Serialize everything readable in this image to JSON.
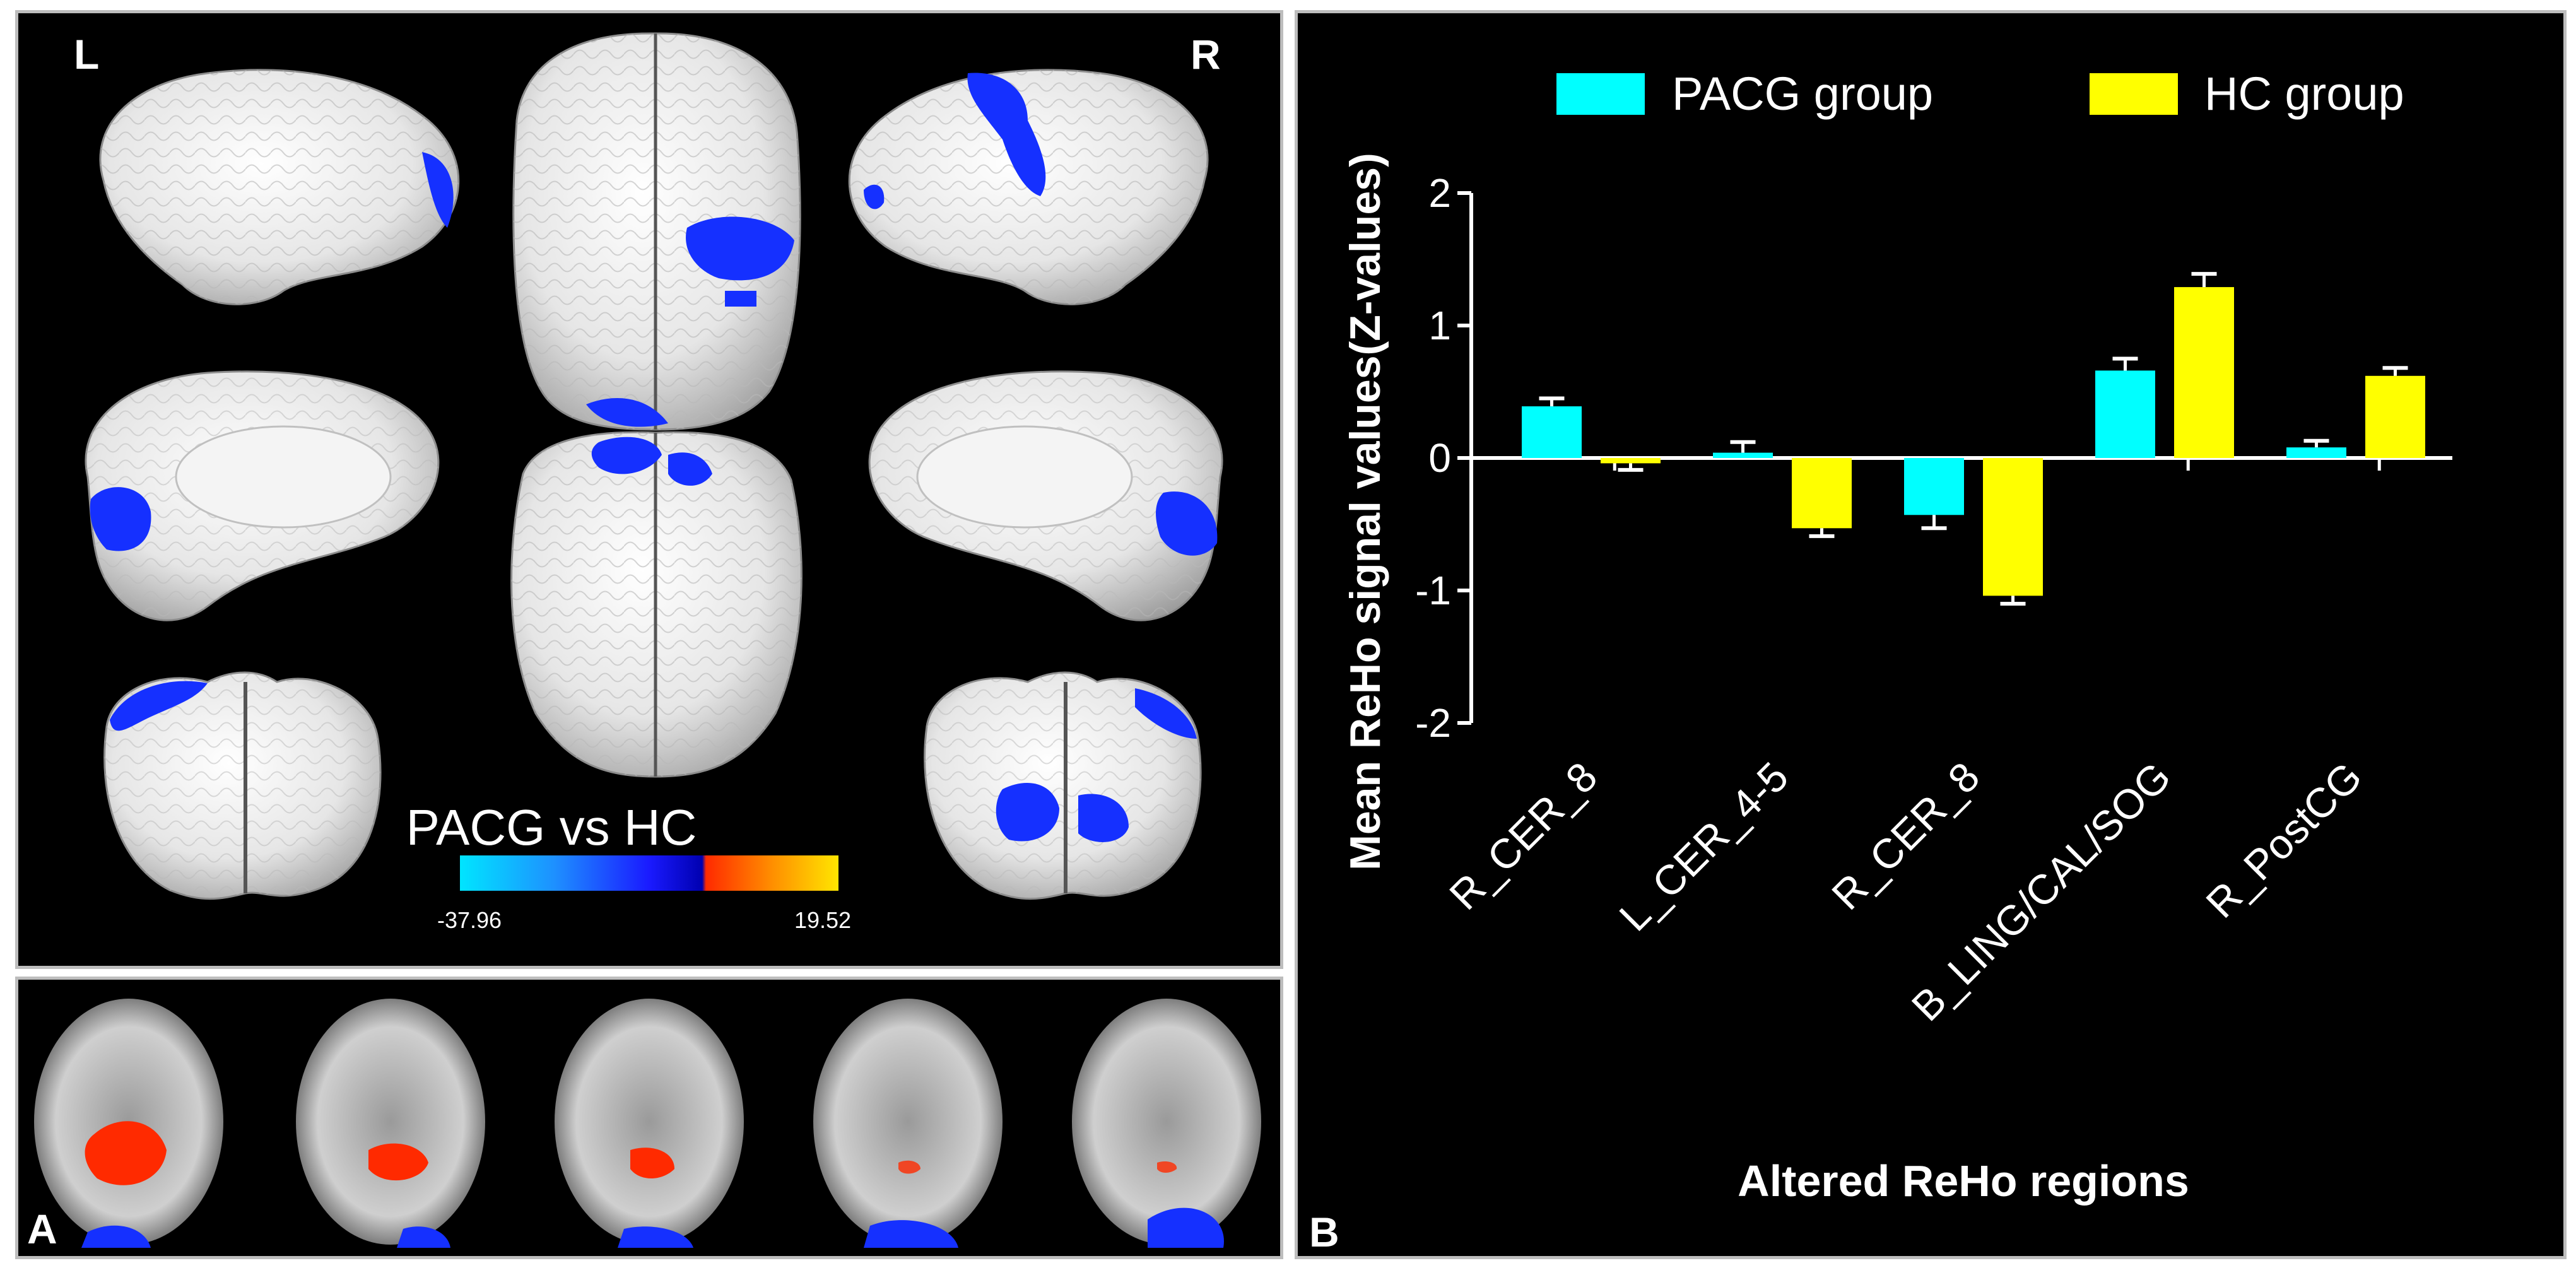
{
  "panel_a": {
    "label": "A",
    "left_marker": "L",
    "right_marker": "R",
    "colorbar": {
      "title": "PACG vs HC",
      "min_label": "-37.96",
      "max_label": "19.52",
      "colors": [
        "#00e5ff",
        "#1e90ff",
        "#1a1aff",
        "#0000b0",
        "#ff2a00",
        "#ff8c00",
        "#ffe600"
      ]
    }
  },
  "panel_b": {
    "label": "B"
  },
  "chart_data": {
    "type": "bar",
    "title": "",
    "xlabel": "Altered ReHo regions",
    "ylabel": "Mean ReHo signal values(Z-values)",
    "ylim": [
      -2,
      2
    ],
    "yticks": [
      2,
      1,
      0,
      -1,
      -2
    ],
    "categories": [
      "R_CER_8",
      "L_CER_4-5",
      "R_CER_8",
      "B_LING/CAL/SOG",
      "R_PostCG"
    ],
    "series": [
      {
        "name": "PACG group",
        "color": "#00ffff",
        "values": [
          0.39,
          0.04,
          -0.43,
          0.66,
          0.08
        ],
        "errors": [
          0.06,
          0.08,
          0.1,
          0.09,
          0.05
        ]
      },
      {
        "name": "HC group",
        "color": "#ffff00",
        "values": [
          -0.04,
          -0.53,
          -1.04,
          1.29,
          0.62
        ],
        "errors": [
          0.05,
          0.06,
          0.06,
          0.1,
          0.06
        ]
      }
    ],
    "legend_position": "top",
    "grid": false,
    "background": "#000000",
    "axis_color": "#ffffff"
  }
}
